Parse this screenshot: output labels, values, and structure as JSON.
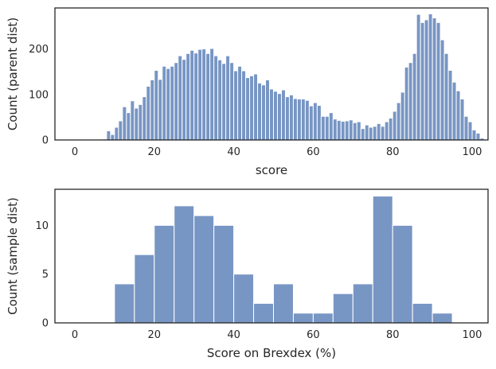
{
  "chart_data": [
    {
      "type": "bar",
      "subtype": "histogram",
      "title": "",
      "xlabel": "score",
      "ylabel": "Count (parent dist)",
      "xlim": [
        -5,
        104
      ],
      "ylim": [
        0,
        290
      ],
      "xticks": [
        0,
        20,
        40,
        60,
        80,
        100
      ],
      "yticks": [
        0,
        100,
        200
      ],
      "bin_start": 7,
      "bin_width": 1,
      "values": [
        2,
        20,
        12,
        28,
        42,
        73,
        60,
        86,
        70,
        78,
        95,
        118,
        132,
        153,
        133,
        162,
        157,
        162,
        170,
        185,
        177,
        190,
        197,
        191,
        199,
        200,
        190,
        201,
        185,
        176,
        168,
        185,
        170,
        152,
        162,
        152,
        137,
        141,
        145,
        125,
        121,
        132,
        112,
        107,
        102,
        110,
        95,
        99,
        91,
        90,
        90,
        87,
        75,
        82,
        76,
        52,
        52,
        60,
        46,
        43,
        41,
        42,
        44,
        38,
        40,
        25,
        33,
        28,
        30,
        36,
        30,
        40,
        48,
        63,
        82,
        105,
        160,
        170,
        190,
        276,
        258,
        264,
        277,
        268,
        258,
        220,
        190,
        153,
        127,
        108,
        90,
        52,
        40,
        22,
        15,
        4
      ],
      "color": "#7896c4",
      "grid": false
    },
    {
      "type": "bar",
      "subtype": "histogram",
      "title": "",
      "xlabel": "Score on Brexdex (%)",
      "ylabel": "Count (sample dist)",
      "xlim": [
        -5,
        104
      ],
      "ylim": [
        0,
        13.7
      ],
      "xticks": [
        0,
        20,
        40,
        60,
        80,
        100
      ],
      "yticks": [
        0,
        5,
        10
      ],
      "bin_start": 10,
      "bin_width": 5,
      "values": [
        4,
        7,
        10,
        12,
        11,
        10,
        5,
        2,
        4,
        1,
        1,
        3,
        4,
        13,
        10,
        2,
        1
      ],
      "color": "#7896c4",
      "grid": false
    }
  ]
}
